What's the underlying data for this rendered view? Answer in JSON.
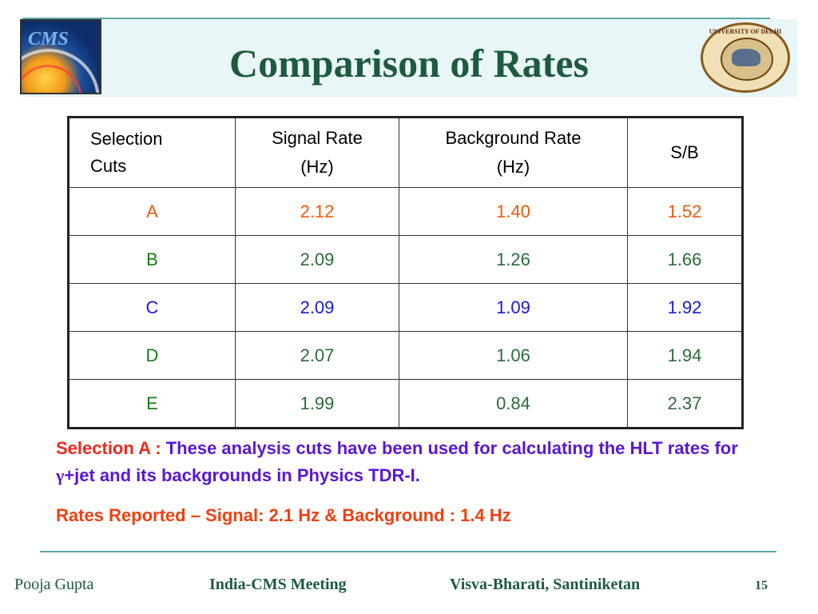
{
  "slide": {
    "title": "Comparison of Rates",
    "cms_logo_text": "CMS",
    "du_logo_text": "UNIVERSITY OF DELHI"
  },
  "table": {
    "headers": {
      "selection_line1": "Selection",
      "selection_line2": "Cuts",
      "signal_line1": "Signal Rate",
      "signal_line2": "(Hz)",
      "background_line1": "Background  Rate",
      "background_line2": "(Hz)",
      "sb": "S/B"
    },
    "rows": [
      {
        "cut": "A",
        "signal": "2.12",
        "background": "1.40",
        "sb": "1.52"
      },
      {
        "cut": "B",
        "signal": "2.09",
        "background": "1.26",
        "sb": "1.66"
      },
      {
        "cut": "C",
        "signal": "2.09",
        "background": "1.09",
        "sb": "1.92"
      },
      {
        "cut": "D",
        "signal": "2.07",
        "background": "1.06",
        "sb": "1.94"
      },
      {
        "cut": "E",
        "signal": "1.99",
        "background": "0.84",
        "sb": "2.37"
      }
    ]
  },
  "notes": {
    "note1_prefix": "Selection A : ",
    "note1_text_a": "These analysis cuts have been used for calculating the HLT rates for  ",
    "note1_gamma": "γ",
    "note1_text_b": "+jet and its backgrounds in Physics TDR-I.",
    "note2": "Rates Reported – Signal:  2.1 Hz   &  Background :  1.4 Hz"
  },
  "footer": {
    "author": "Pooja Gupta",
    "meeting": "India-CMS Meeting",
    "place": "Visva-Bharati, Santiniketan",
    "page": "15"
  },
  "colors": {
    "title": "#1e5a3e",
    "row_a": "#f05a0a",
    "row_c": "#1a1ad6",
    "note_red": "#f0281e",
    "note_purple": "#5a16d6"
  }
}
